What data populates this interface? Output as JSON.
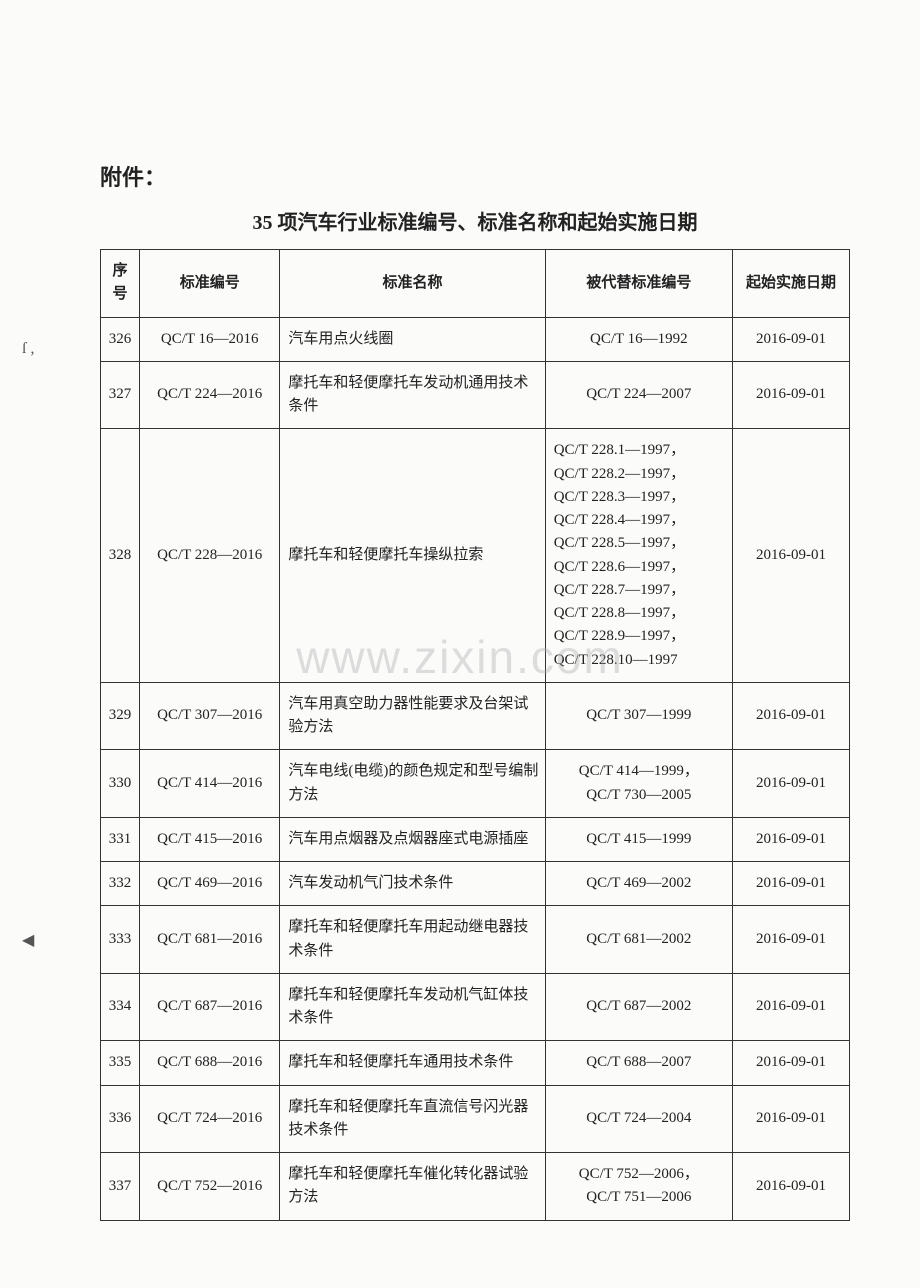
{
  "attachment_label": "附件：",
  "title": "35 项汽车行业标准编号、标准名称和起始实施日期",
  "watermark": "www.zixin.com",
  "table": {
    "columns": {
      "seq": "序号",
      "code": "标准编号",
      "name": "标准名称",
      "replaced": "被代替标准编号",
      "date": "起始实施日期"
    },
    "rows": [
      {
        "seq": "326",
        "code": "QC/T 16—2016",
        "name": "汽车用点火线圈",
        "replaced": "QC/T 16—1992",
        "date": "2016-09-01"
      },
      {
        "seq": "327",
        "code": "QC/T 224—2016",
        "name": "摩托车和轻便摩托车发动机通用技术条件",
        "replaced": "QC/T 224—2007",
        "date": "2016-09-01"
      },
      {
        "seq": "328",
        "code": "QC/T 228—2016",
        "name": "摩托车和轻便摩托车操纵拉索",
        "replaced": "QC/T 228.1—1997，\nQC/T 228.2—1997，\nQC/T 228.3—1997，\nQC/T 228.4—1997，\nQC/T 228.5—1997，\nQC/T 228.6—1997，\nQC/T 228.7—1997，\nQC/T 228.8—1997，\nQC/T 228.9—1997，\nQC/T 228.10—1997",
        "replaced_multi": true,
        "date": "2016-09-01"
      },
      {
        "seq": "329",
        "code": "QC/T 307—2016",
        "name": "汽车用真空助力器性能要求及台架试验方法",
        "replaced": "QC/T 307—1999",
        "date": "2016-09-01"
      },
      {
        "seq": "330",
        "code": "QC/T 414—2016",
        "name": "汽车电线(电缆)的颜色规定和型号编制方法",
        "replaced": "QC/T 414—1999，\nQC/T 730—2005",
        "replaced_multi": false,
        "date": "2016-09-01"
      },
      {
        "seq": "331",
        "code": "QC/T 415—2016",
        "name": "汽车用点烟器及点烟器座式电源插座",
        "replaced": "QC/T 415—1999",
        "date": "2016-09-01"
      },
      {
        "seq": "332",
        "code": "QC/T 469—2016",
        "name": "汽车发动机气门技术条件",
        "replaced": "QC/T 469—2002",
        "date": "2016-09-01"
      },
      {
        "seq": "333",
        "code": "QC/T 681—2016",
        "name": "摩托车和轻便摩托车用起动继电器技术条件",
        "replaced": "QC/T 681—2002",
        "date": "2016-09-01"
      },
      {
        "seq": "334",
        "code": "QC/T 687—2016",
        "name": "摩托车和轻便摩托车发动机气缸体技术条件",
        "replaced": "QC/T 687—2002",
        "date": "2016-09-01"
      },
      {
        "seq": "335",
        "code": "QC/T 688—2016",
        "name": "摩托车和轻便摩托车通用技术条件",
        "replaced": "QC/T 688—2007",
        "date": "2016-09-01"
      },
      {
        "seq": "336",
        "code": "QC/T 724—2016",
        "name": "摩托车和轻便摩托车直流信号闪光器技术条件",
        "replaced": "QC/T 724—2004",
        "date": "2016-09-01"
      },
      {
        "seq": "337",
        "code": "QC/T 752—2016",
        "name": "摩托车和轻便摩托车催化转化器试验方法",
        "replaced": "QC/T 752—2006，\nQC/T 751—2006",
        "replaced_multi": false,
        "date": "2016-09-01"
      }
    ]
  }
}
